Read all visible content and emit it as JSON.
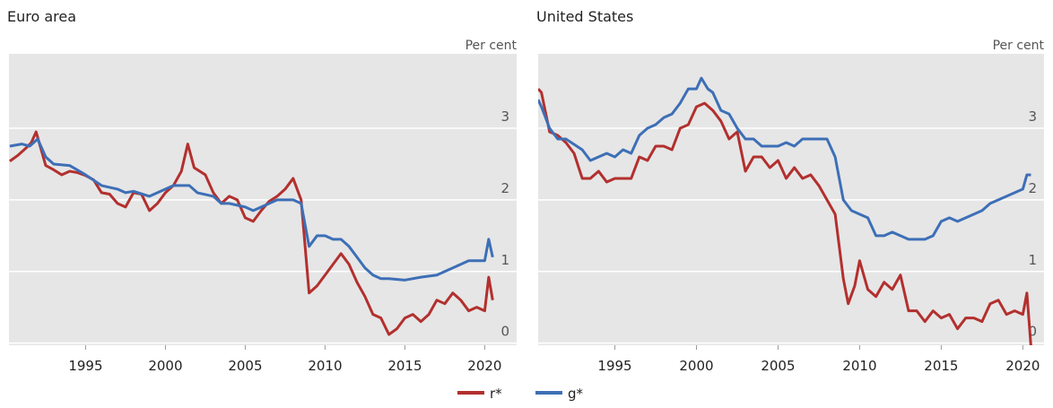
{
  "chart_data": [
    {
      "type": "line",
      "title": "Euro area",
      "y_unit": "Per cent",
      "xlim": [
        1990.2,
        2022
      ],
      "xticks": [
        1995,
        2000,
        2005,
        2010,
        2015,
        2020
      ],
      "ylim": [
        -0.03,
        4.04
      ],
      "yticks": [
        0,
        1,
        2,
        3
      ],
      "grid": true,
      "series": [
        {
          "name": "r*",
          "color": "#b2302e",
          "x": [
            1990.25,
            1990.75,
            1991.25,
            1991.6,
            1991.9,
            1992.5,
            1993,
            1993.5,
            1994,
            1994.5,
            1995,
            1995.5,
            1996,
            1996.5,
            1997,
            1997.5,
            1998,
            1998.5,
            1999,
            1999.5,
            2000,
            2000.5,
            2001,
            2001.4,
            2001.8,
            2002.5,
            2003,
            2003.5,
            2004,
            2004.5,
            2005,
            2005.5,
            2006,
            2006.5,
            2007,
            2007.5,
            2008,
            2008.5,
            2009,
            2009.5,
            2010,
            2010.5,
            2011,
            2011.5,
            2012,
            2012.5,
            2013,
            2013.5,
            2014,
            2014.5,
            2015,
            2015.5,
            2016,
            2016.5,
            2017,
            2017.5,
            2018,
            2018.5,
            2019,
            2019.5,
            2020,
            2020.25,
            2020.5
          ],
          "values": [
            2.54,
            2.62,
            2.72,
            2.8,
            2.95,
            2.48,
            2.42,
            2.35,
            2.4,
            2.38,
            2.34,
            2.28,
            2.1,
            2.08,
            1.95,
            1.9,
            2.1,
            2.08,
            1.85,
            1.95,
            2.1,
            2.2,
            2.4,
            2.78,
            2.45,
            2.35,
            2.1,
            1.95,
            2.05,
            2.0,
            1.75,
            1.7,
            1.85,
            1.98,
            2.05,
            2.15,
            2.3,
            2.0,
            0.7,
            0.8,
            0.95,
            1.1,
            1.25,
            1.1,
            0.85,
            0.65,
            0.4,
            0.35,
            0.12,
            0.2,
            0.35,
            0.4,
            0.3,
            0.4,
            0.6,
            0.55,
            0.7,
            0.6,
            0.45,
            0.5,
            0.45,
            0.92,
            0.6
          ]
        },
        {
          "name": "g*",
          "color": "#3d6fb6",
          "x": [
            1990.25,
            1991,
            1991.5,
            1992,
            1992.5,
            1993,
            1994,
            1995,
            1996,
            1997,
            1997.5,
            1998,
            1999,
            2000,
            2000.5,
            2001,
            2001.5,
            2002,
            2003,
            2003.5,
            2004,
            2005,
            2005.5,
            2006,
            2007,
            2008,
            2008.5,
            2009,
            2009.5,
            2010,
            2010.5,
            2011,
            2011.5,
            2012,
            2012.5,
            2013,
            2013.5,
            2014,
            2015,
            2016,
            2017,
            2018,
            2018.5,
            2019,
            2019.5,
            2020,
            2020.25,
            2020.5
          ],
          "values": [
            2.75,
            2.78,
            2.75,
            2.85,
            2.6,
            2.5,
            2.48,
            2.35,
            2.2,
            2.15,
            2.1,
            2.12,
            2.05,
            2.15,
            2.2,
            2.2,
            2.2,
            2.1,
            2.05,
            1.95,
            1.95,
            1.9,
            1.85,
            1.9,
            2.0,
            2.0,
            1.95,
            1.35,
            1.5,
            1.5,
            1.45,
            1.45,
            1.35,
            1.2,
            1.05,
            0.95,
            0.9,
            0.9,
            0.88,
            0.92,
            0.95,
            1.05,
            1.1,
            1.15,
            1.15,
            1.15,
            1.45,
            1.2
          ]
        }
      ]
    },
    {
      "type": "line",
      "title": "United States",
      "y_unit": "Per cent",
      "xlim": [
        1990.3,
        2021.3
      ],
      "xticks": [
        1995,
        2000,
        2005,
        2010,
        2015,
        2020
      ],
      "ylim": [
        -0.03,
        4.04
      ],
      "yticks": [
        0,
        1,
        2,
        3
      ],
      "grid": true,
      "series": [
        {
          "name": "r*",
          "color": "#b2302e",
          "x": [
            1990.3,
            1990.5,
            1991,
            1991.5,
            1992,
            1992.5,
            1993,
            1993.5,
            1994,
            1994.5,
            1995,
            1996,
            1996.5,
            1997,
            1997.5,
            1998,
            1998.5,
            1999,
            1999.5,
            2000,
            2000.5,
            2001,
            2001.5,
            2002,
            2002.5,
            2003,
            2003.5,
            2004,
            2004.5,
            2005,
            2005.5,
            2006,
            2006.5,
            2007,
            2007.5,
            2008,
            2008.5,
            2009,
            2009.3,
            2009.7,
            2010,
            2010.5,
            2011,
            2011.5,
            2012,
            2012.5,
            2013,
            2013.5,
            2014,
            2014.5,
            2015,
            2015.5,
            2016,
            2016.5,
            2017,
            2017.5,
            2018,
            2018.5,
            2019,
            2019.5,
            2020,
            2020.25,
            2020.5
          ],
          "values": [
            3.55,
            3.5,
            2.95,
            2.9,
            2.8,
            2.65,
            2.3,
            2.3,
            2.4,
            2.25,
            2.3,
            2.3,
            2.6,
            2.55,
            2.75,
            2.75,
            2.7,
            3.0,
            3.05,
            3.3,
            3.35,
            3.25,
            3.1,
            2.85,
            2.95,
            2.4,
            2.6,
            2.6,
            2.45,
            2.55,
            2.3,
            2.45,
            2.3,
            2.35,
            2.2,
            2.0,
            1.8,
            0.9,
            0.55,
            0.8,
            1.15,
            0.75,
            0.65,
            0.85,
            0.75,
            0.95,
            0.45,
            0.45,
            0.3,
            0.45,
            0.35,
            0.4,
            0.2,
            0.35,
            0.35,
            0.3,
            0.55,
            0.6,
            0.4,
            0.45,
            0.4,
            0.7,
            -0.05
          ]
        },
        {
          "name": "g*",
          "color": "#3d6fb6",
          "x": [
            1990.3,
            1990.5,
            1991,
            1991.5,
            1992,
            1993,
            1993.5,
            1994,
            1994.5,
            1995,
            1995.5,
            1996,
            1996.5,
            1997,
            1997.5,
            1998,
            1998.5,
            1999,
            1999.5,
            2000,
            2000.3,
            2000.7,
            2001,
            2001.5,
            2002,
            2002.5,
            2003,
            2003.5,
            2004,
            2005,
            2005.5,
            2006,
            2006.5,
            2007,
            2007.5,
            2008,
            2008.5,
            2009,
            2009.5,
            2010,
            2010.5,
            2011,
            2011.5,
            2012,
            2012.5,
            2013,
            2013.5,
            2014,
            2014.5,
            2015,
            2015.5,
            2016,
            2016.5,
            2017,
            2017.5,
            2018,
            2018.5,
            2019,
            2019.5,
            2020,
            2020.25,
            2020.5
          ],
          "values": [
            3.4,
            3.3,
            3.0,
            2.85,
            2.85,
            2.7,
            2.55,
            2.6,
            2.65,
            2.6,
            2.7,
            2.65,
            2.9,
            3.0,
            3.05,
            3.15,
            3.2,
            3.35,
            3.55,
            3.55,
            3.7,
            3.55,
            3.5,
            3.25,
            3.2,
            3.0,
            2.85,
            2.85,
            2.75,
            2.75,
            2.8,
            2.75,
            2.85,
            2.85,
            2.85,
            2.85,
            2.6,
            2.0,
            1.85,
            1.8,
            1.75,
            1.5,
            1.5,
            1.55,
            1.5,
            1.45,
            1.45,
            1.45,
            1.5,
            1.7,
            1.75,
            1.7,
            1.75,
            1.8,
            1.85,
            1.95,
            2.0,
            2.05,
            2.1,
            2.15,
            2.35,
            2.35
          ]
        }
      ]
    }
  ]
}
